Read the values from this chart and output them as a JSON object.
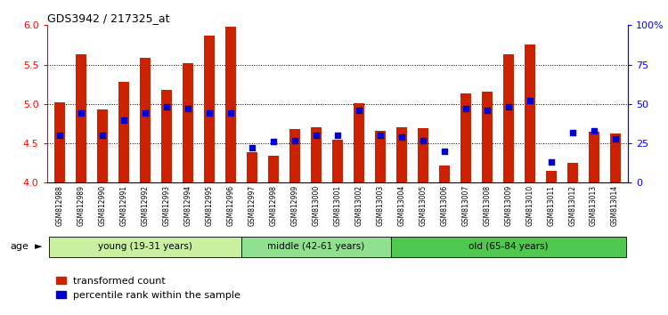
{
  "title": "GDS3942 / 217325_at",
  "samples": [
    "GSM812988",
    "GSM812989",
    "GSM812990",
    "GSM812991",
    "GSM812992",
    "GSM812993",
    "GSM812994",
    "GSM812995",
    "GSM812996",
    "GSM812997",
    "GSM812998",
    "GSM812999",
    "GSM813000",
    "GSM813001",
    "GSM813002",
    "GSM813003",
    "GSM813004",
    "GSM813005",
    "GSM813006",
    "GSM813007",
    "GSM813008",
    "GSM813009",
    "GSM813010",
    "GSM813011",
    "GSM813012",
    "GSM813013",
    "GSM813014"
  ],
  "red_values": [
    5.02,
    5.63,
    4.93,
    5.28,
    5.59,
    5.18,
    5.52,
    5.87,
    5.98,
    4.39,
    4.34,
    4.68,
    4.7,
    4.55,
    5.01,
    4.66,
    4.7,
    4.69,
    4.22,
    5.13,
    5.16,
    5.63,
    5.75,
    4.15,
    4.25,
    4.65,
    4.62
  ],
  "blue_percentiles": [
    30,
    44,
    30,
    40,
    44,
    48,
    47,
    44,
    44,
    22,
    26,
    27,
    30,
    30,
    46,
    30,
    29,
    27,
    20,
    47,
    46,
    48,
    52,
    13,
    32,
    33,
    28
  ],
  "groups": [
    {
      "label": "young (19-31 years)",
      "start": 0,
      "end": 8,
      "color": "#c8f0a0"
    },
    {
      "label": "middle (42-61 years)",
      "start": 9,
      "end": 15,
      "color": "#90e090"
    },
    {
      "label": "old (65-84 years)",
      "start": 16,
      "end": 26,
      "color": "#50c850"
    }
  ],
  "ylim_left": [
    4.0,
    6.0
  ],
  "ylim_right": [
    0,
    100
  ],
  "yticks_left": [
    4.0,
    4.5,
    5.0,
    5.5,
    6.0
  ],
  "yticks_right": [
    0,
    25,
    50,
    75,
    100
  ],
  "ytick_labels_right": [
    "0",
    "25",
    "50",
    "75",
    "100%"
  ],
  "bar_color": "#cc2200",
  "dot_color": "#0000cc",
  "bar_bottom": 4.0,
  "bar_width": 0.5,
  "dot_size": 22,
  "legend_labels": [
    "transformed count",
    "percentile rank within the sample"
  ],
  "legend_colors": [
    "#cc2200",
    "#0000cc"
  ],
  "grid_yticks": [
    4.5,
    5.0,
    5.5
  ],
  "xlim": [
    -0.6,
    26.6
  ]
}
